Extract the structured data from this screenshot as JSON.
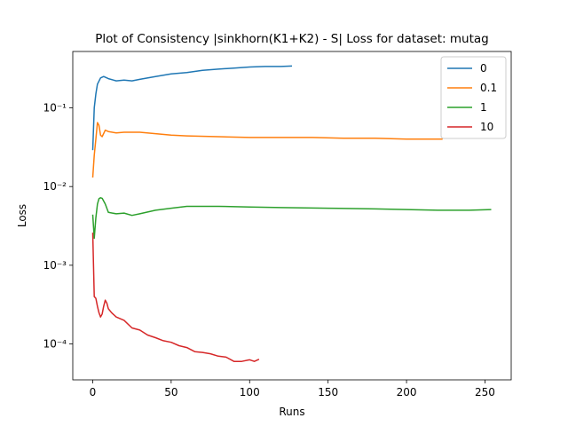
{
  "chart_data": {
    "type": "line",
    "title": "Plot of Consistency |sinkhorn(K1+K2) - S| Loss for dataset: mutag",
    "xlabel": "Runs",
    "ylabel": "Loss",
    "log_y": true,
    "legend": "upper right",
    "xlim": [
      -12.7,
      266.7
    ],
    "xticks": [
      0,
      50,
      100,
      150,
      200,
      250
    ],
    "ylim": [
      3.5e-05,
      0.52
    ],
    "yticks": [
      {
        "value": 0.0001,
        "label": "10⁻⁴"
      },
      {
        "value": 0.001,
        "label": "10⁻³"
      },
      {
        "value": 0.01,
        "label": "10⁻²"
      },
      {
        "value": 0.1,
        "label": "10⁻¹"
      }
    ],
    "series": [
      {
        "name": "0",
        "color": "#1f77b4",
        "x": [
          0,
          1,
          2,
          3,
          5,
          7,
          10,
          15,
          20,
          25,
          30,
          40,
          50,
          60,
          70,
          80,
          90,
          100,
          110,
          120,
          127
        ],
        "values": [
          0.029,
          0.1,
          0.15,
          0.2,
          0.24,
          0.25,
          0.235,
          0.22,
          0.225,
          0.22,
          0.23,
          0.25,
          0.27,
          0.28,
          0.3,
          0.31,
          0.32,
          0.33,
          0.335,
          0.335,
          0.34
        ]
      },
      {
        "name": "0.1",
        "color": "#ff7f0e",
        "x": [
          0,
          1,
          2,
          3,
          4,
          5,
          6,
          8,
          10,
          15,
          20,
          30,
          40,
          50,
          60,
          80,
          100,
          120,
          140,
          160,
          180,
          200,
          223
        ],
        "values": [
          0.013,
          0.025,
          0.04,
          0.065,
          0.06,
          0.045,
          0.043,
          0.052,
          0.05,
          0.048,
          0.049,
          0.049,
          0.047,
          0.045,
          0.044,
          0.043,
          0.042,
          0.042,
          0.042,
          0.041,
          0.041,
          0.04,
          0.04
        ]
      },
      {
        "name": "1",
        "color": "#2ca02c",
        "x": [
          0,
          1,
          2,
          3,
          4,
          5,
          6,
          8,
          10,
          15,
          20,
          25,
          30,
          40,
          50,
          60,
          70,
          80,
          100,
          120,
          150,
          180,
          200,
          220,
          240,
          254
        ],
        "values": [
          0.0044,
          0.0022,
          0.004,
          0.006,
          0.007,
          0.0072,
          0.0071,
          0.006,
          0.0047,
          0.0045,
          0.0046,
          0.0043,
          0.0045,
          0.005,
          0.0053,
          0.0056,
          0.0056,
          0.0056,
          0.0055,
          0.0054,
          0.0053,
          0.0052,
          0.0051,
          0.005,
          0.005,
          0.0051
        ]
      },
      {
        "name": "10",
        "color": "#d62728",
        "x": [
          0,
          1,
          2,
          3,
          4,
          5,
          6,
          7,
          8,
          9,
          10,
          12,
          15,
          20,
          25,
          30,
          35,
          40,
          45,
          50,
          55,
          60,
          65,
          70,
          75,
          80,
          85,
          90,
          95,
          100,
          103,
          106
        ],
        "values": [
          0.0026,
          0.0004,
          0.00038,
          0.0003,
          0.00025,
          0.00022,
          0.00024,
          0.0003,
          0.00036,
          0.00033,
          0.00028,
          0.00025,
          0.00022,
          0.0002,
          0.00016,
          0.00015,
          0.00013,
          0.00012,
          0.00011,
          0.000105,
          9.5e-05,
          9e-05,
          8e-05,
          7.8e-05,
          7.5e-05,
          7e-05,
          6.8e-05,
          6e-05,
          6e-05,
          6.3e-05,
          6e-05,
          6.4e-05
        ]
      }
    ]
  }
}
